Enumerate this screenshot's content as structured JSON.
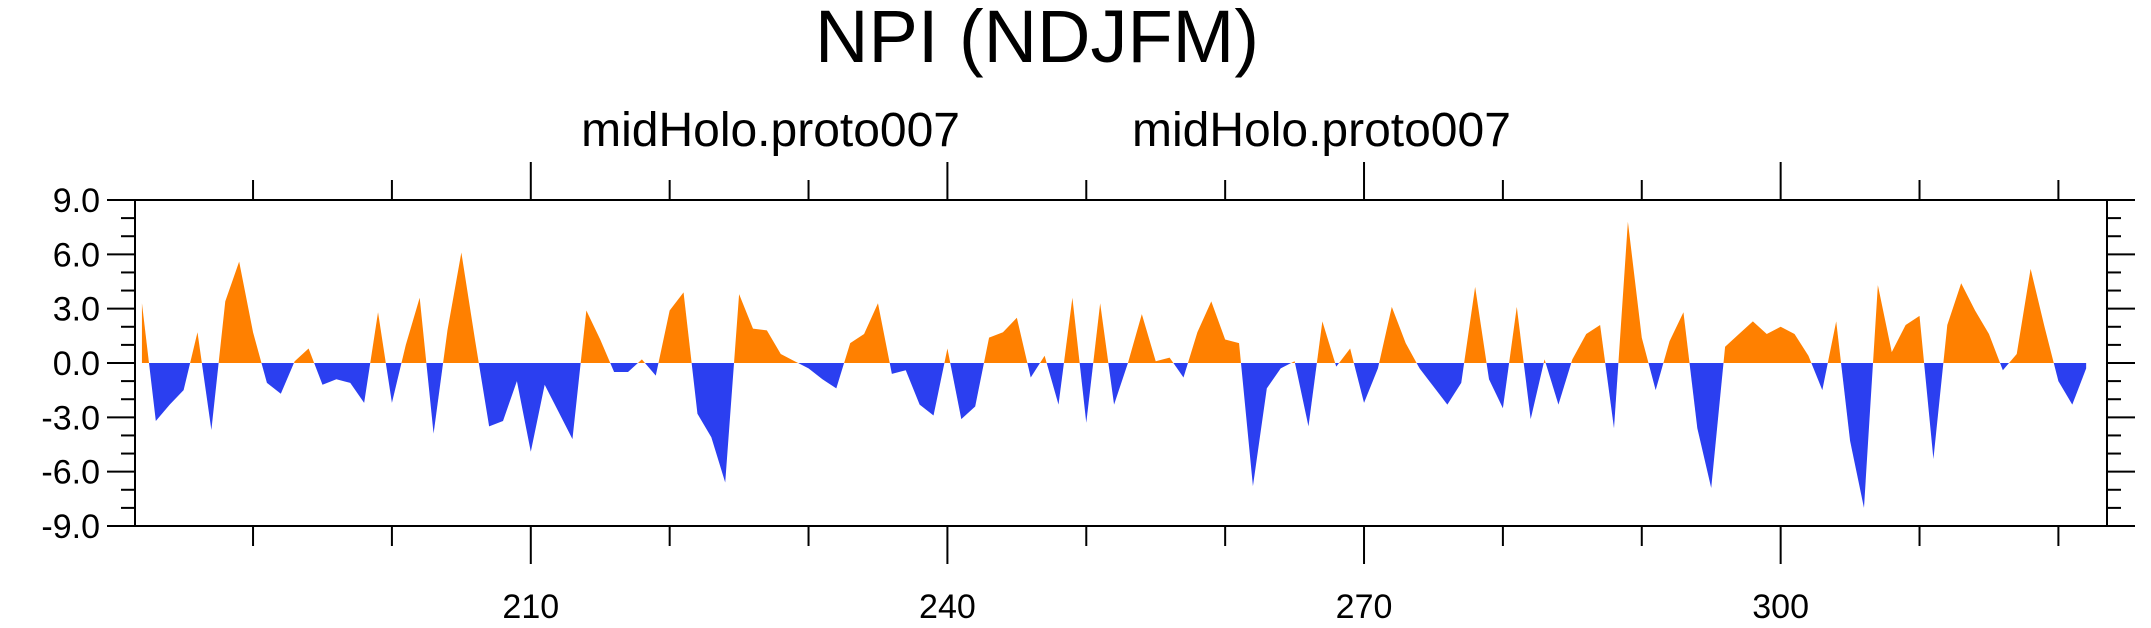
{
  "chart_data": {
    "type": "area",
    "title": "NPI (NDJFM)",
    "subtitle_left": "midHolo.proto007",
    "subtitle_right": "midHolo.proto007",
    "xlabel": "",
    "ylabel": "",
    "xlim": [
      181.5,
      323.5
    ],
    "ylim": [
      -9.0,
      9.0
    ],
    "x_ticks": [
      210,
      240,
      270,
      300
    ],
    "y_ticks": [
      -9.0,
      -6.0,
      -3.0,
      0.0,
      3.0,
      6.0,
      9.0
    ],
    "y_tick_labels": [
      "-9.0",
      "-6.0",
      "-3.0",
      "0.0",
      "3.0",
      "6.0",
      "9.0"
    ],
    "positive_color": "#ff8000",
    "negative_color": "#2b3ff0",
    "grid": false,
    "x": [
      182,
      183,
      184,
      185,
      186,
      187,
      188,
      189,
      190,
      191,
      192,
      193,
      194,
      195,
      196,
      197,
      198,
      199,
      200,
      201,
      202,
      203,
      204,
      205,
      206,
      207,
      208,
      209,
      210,
      211,
      212,
      213,
      214,
      215,
      216,
      217,
      218,
      219,
      220,
      221,
      222,
      223,
      224,
      225,
      226,
      227,
      228,
      229,
      230,
      231,
      232,
      233,
      234,
      235,
      236,
      237,
      238,
      239,
      240,
      241,
      242,
      243,
      244,
      245,
      246,
      247,
      248,
      249,
      250,
      251,
      252,
      253,
      254,
      255,
      256,
      257,
      258,
      259,
      260,
      261,
      262,
      263,
      264,
      265,
      266,
      267,
      268,
      269,
      270,
      271,
      272,
      273,
      274,
      275,
      276,
      277,
      278,
      279,
      280,
      281,
      282,
      283,
      284,
      285,
      286,
      287,
      288,
      289,
      290,
      291,
      292,
      293,
      294,
      295,
      296,
      297,
      298,
      299,
      300,
      301,
      302,
      303,
      304,
      305,
      306,
      307,
      308,
      309,
      310,
      311,
      312,
      313,
      314,
      315,
      316,
      317,
      318,
      319,
      320,
      321,
      322
    ],
    "values": [
      3.3,
      -3.2,
      -2.3,
      -1.5,
      1.7,
      -3.7,
      3.4,
      5.6,
      1.7,
      -1.1,
      -1.7,
      0.1,
      0.8,
      -1.2,
      -0.9,
      -1.1,
      -2.2,
      2.8,
      -2.2,
      1.0,
      3.6,
      -3.9,
      1.8,
      6.1,
      1.2,
      -3.5,
      -3.2,
      -1.0,
      -4.9,
      -1.2,
      -2.7,
      -4.2,
      2.9,
      1.3,
      -0.5,
      -0.5,
      0.2,
      -0.7,
      2.9,
      3.9,
      -2.8,
      -4.1,
      -6.6,
      3.8,
      1.9,
      1.8,
      0.5,
      0.1,
      -0.3,
      -0.9,
      -1.4,
      1.1,
      1.6,
      3.3,
      -0.6,
      -0.4,
      -2.3,
      -2.9,
      0.8,
      -3.1,
      -2.4,
      1.4,
      1.7,
      2.5,
      -0.8,
      0.4,
      -2.3,
      3.6,
      -3.3,
      3.3,
      -2.3,
      0.0,
      2.7,
      0.1,
      0.3,
      -0.8,
      1.7,
      3.4,
      1.3,
      1.1,
      -6.8,
      -1.4,
      -0.3,
      0.1,
      -3.5,
      2.3,
      -0.2,
      0.8,
      -2.2,
      -0.3,
      3.1,
      1.1,
      -0.3,
      -1.3,
      -2.3,
      -1.1,
      4.2,
      -0.9,
      -2.5,
      3.1,
      -3.1,
      0.2,
      -2.3,
      0.2,
      1.6,
      2.1,
      -3.6,
      7.8,
      1.4,
      -1.5,
      1.2,
      2.8,
      -3.6,
      -6.9,
      0.9,
      1.6,
      2.3,
      1.6,
      2.0,
      1.6,
      0.4,
      -1.5,
      2.3,
      -4.3,
      -8.0,
      4.3,
      0.6,
      2.1,
      2.6,
      -5.3,
      2.1,
      4.4,
      2.9,
      1.6,
      -0.4,
      0.5,
      5.2,
      2.0,
      -1.0,
      -2.3,
      -0.3
    ]
  }
}
